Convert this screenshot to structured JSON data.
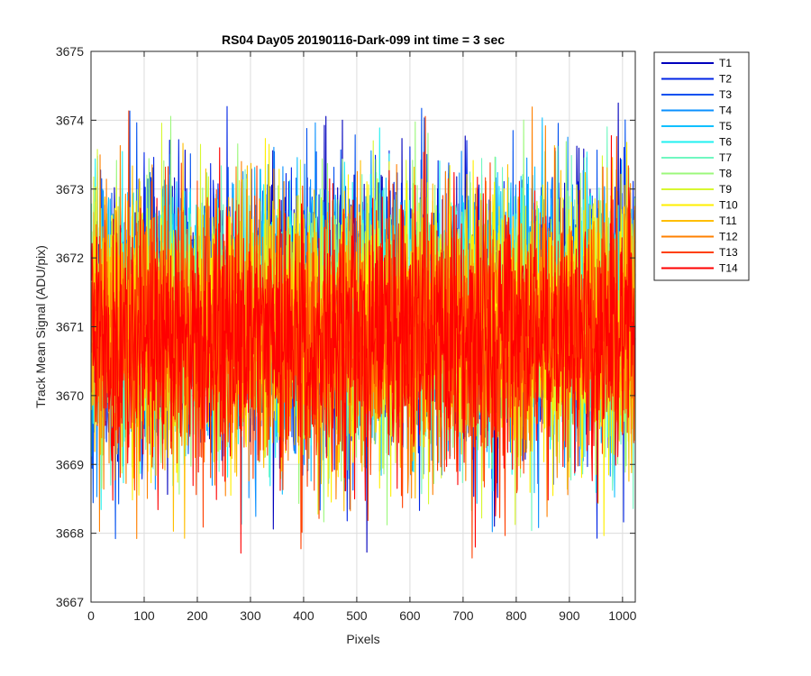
{
  "chart_data": {
    "type": "line",
    "title": "RS04 Day05 20190116-Dark-099 int time = 3 sec",
    "xlabel": "Pixels",
    "ylabel": "Track Mean Signal (ADU/pix)",
    "xlim": [
      0,
      1024
    ],
    "ylim": [
      3667,
      3675
    ],
    "xticks": [
      0,
      100,
      200,
      300,
      400,
      500,
      600,
      700,
      800,
      900,
      1000
    ],
    "yticks": [
      3667,
      3668,
      3669,
      3670,
      3671,
      3672,
      3673,
      3674,
      3675
    ],
    "grid": true,
    "legend_position": "outside-top-right",
    "n_points": 1024,
    "series": [
      {
        "name": "T1",
        "color": "#0000bd",
        "mean": 3671.25,
        "std": 0.95
      },
      {
        "name": "T2",
        "color": "#0024e6",
        "mean": 3671.25,
        "std": 0.95
      },
      {
        "name": "T3",
        "color": "#0050f0",
        "mean": 3671.2,
        "std": 0.95
      },
      {
        "name": "T4",
        "color": "#0a90ff",
        "mean": 3671.2,
        "std": 0.95
      },
      {
        "name": "T5",
        "color": "#10c0ff",
        "mean": 3671.15,
        "std": 0.95
      },
      {
        "name": "T6",
        "color": "#20f0f0",
        "mean": 3671.15,
        "std": 0.95
      },
      {
        "name": "T7",
        "color": "#70f8c0",
        "mean": 3671.1,
        "std": 0.95
      },
      {
        "name": "T8",
        "color": "#9cf87c",
        "mean": 3671.1,
        "std": 0.95
      },
      {
        "name": "T9",
        "color": "#d8f830",
        "mean": 3671.05,
        "std": 0.95
      },
      {
        "name": "T10",
        "color": "#ffef00",
        "mean": 3671.0,
        "std": 0.95
      },
      {
        "name": "T11",
        "color": "#ffbe00",
        "mean": 3671.0,
        "std": 0.95
      },
      {
        "name": "T12",
        "color": "#ff8000",
        "mean": 3670.95,
        "std": 0.95
      },
      {
        "name": "T13",
        "color": "#ff4000",
        "mean": 3670.9,
        "std": 0.95
      },
      {
        "name": "T14",
        "color": "#ff0000",
        "mean": 3670.85,
        "std": 0.95
      }
    ]
  }
}
